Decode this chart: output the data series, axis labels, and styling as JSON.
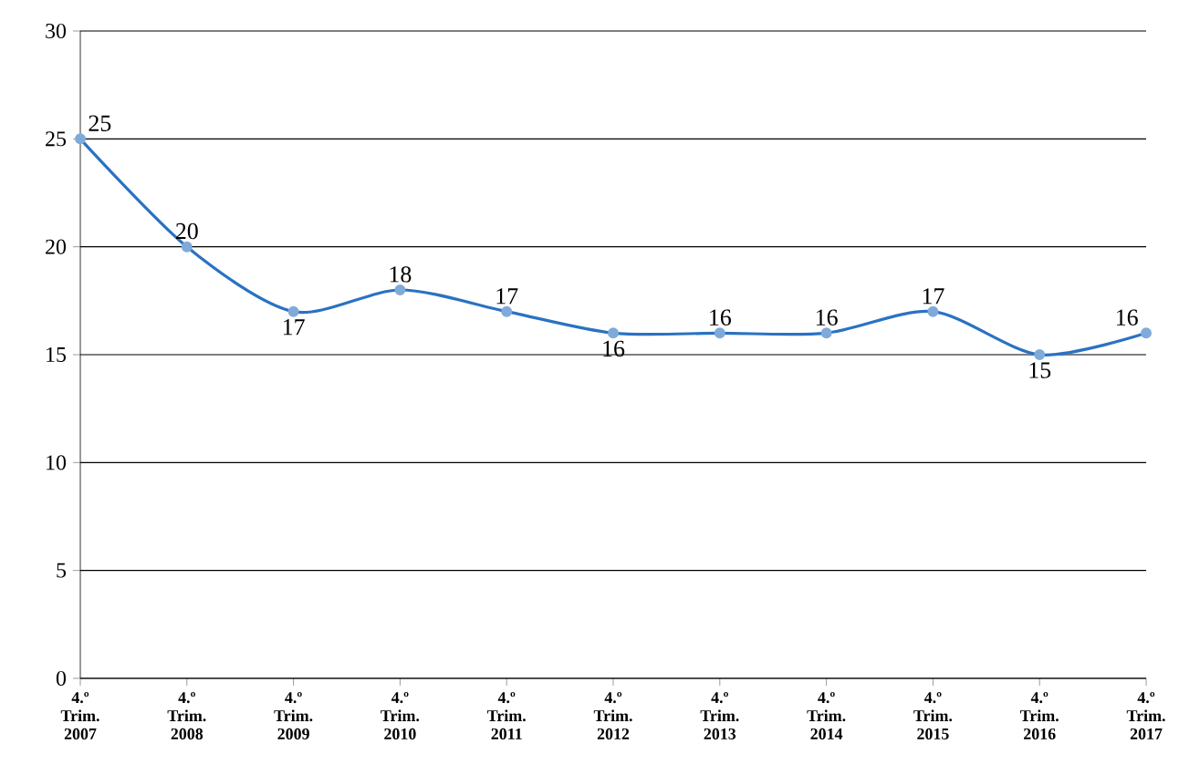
{
  "chart_data": {
    "type": "line",
    "categories": [
      "4.º Trim. 2007",
      "4.º Trim. 2008",
      "4.º Trim. 2009",
      "4.º Trim. 2010",
      "4.º Trim. 2011",
      "4.º Trim. 2012",
      "4.º Trim. 2013",
      "4.º Trim. 2014",
      "4.º Trim. 2015",
      "4.º Trim. 2016",
      "4.º Trim. 2017"
    ],
    "values": [
      25,
      20,
      17,
      18,
      17,
      16,
      16,
      16,
      17,
      15,
      16
    ],
    "color": "#2a72c2",
    "marker": "circle",
    "data_labels": true,
    "grid": "y",
    "ylim": [
      0,
      30
    ],
    "yticks": [
      0,
      5,
      10,
      15,
      20,
      25,
      30
    ]
  }
}
